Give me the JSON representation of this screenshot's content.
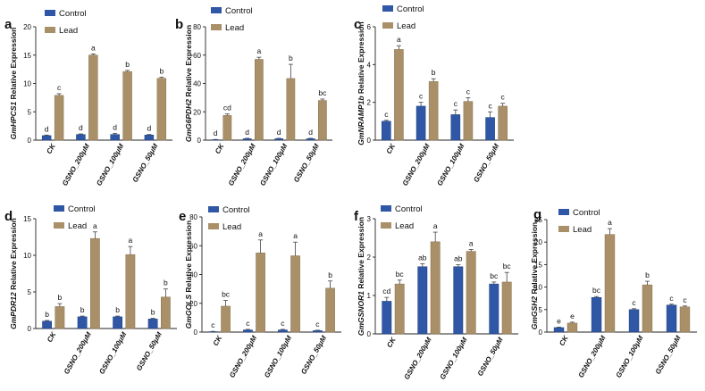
{
  "chart_data": [
    {
      "type": "bar",
      "panel": "a",
      "ylabel_prefix": "Gm",
      "ylabel_gene": "HPCS1",
      "ylabel_suffix": " Relative Expression",
      "categories": [
        "CK",
        "GSNO_200μM",
        "GSNO_100μM",
        "GSNO_50μM"
      ],
      "ylim": [
        0,
        20
      ],
      "yticks": [
        "0",
        "5",
        "10",
        "15",
        "20"
      ],
      "legend": [
        "Control",
        "Lead"
      ],
      "series": [
        {
          "name": "Control",
          "values": [
            0.8,
            1.0,
            1.0,
            0.9
          ],
          "errors": [
            0.1,
            0.1,
            0.2,
            0.1
          ],
          "letters": [
            "d",
            "d",
            "d",
            "d"
          ]
        },
        {
          "name": "Lead",
          "values": [
            7.9,
            15.0,
            12.1,
            10.9
          ],
          "errors": [
            0.3,
            0.2,
            0.2,
            0.2
          ],
          "letters": [
            "c",
            "a",
            "b",
            "b"
          ]
        }
      ]
    },
    {
      "type": "bar",
      "panel": "b",
      "ylabel_prefix": "Gm",
      "ylabel_gene": "G6PDH2",
      "ylabel_suffix": " Relative Expression",
      "categories": [
        "CK",
        "GSNO_200μM",
        "GSNO_100μM",
        "GSNO_50μM"
      ],
      "ylim": [
        0,
        80
      ],
      "yticks": [
        "0",
        "20",
        "40",
        "60",
        "80"
      ],
      "legend": [
        "Control",
        "Lead"
      ],
      "series": [
        {
          "name": "Control",
          "values": [
            0.3,
            1.0,
            1.0,
            1.0
          ],
          "errors": [
            0.2,
            0.3,
            0.3,
            0.3
          ],
          "letters": [
            "d",
            "d",
            "d",
            "d"
          ]
        },
        {
          "name": "Lead",
          "values": [
            17.5,
            57.0,
            43.5,
            28.0
          ],
          "errors": [
            1.0,
            1.5,
            10.0,
            1.0
          ],
          "letters": [
            "cd",
            "a",
            "b",
            "bc"
          ]
        }
      ]
    },
    {
      "type": "bar",
      "panel": "c",
      "ylabel_prefix": "Gm",
      "ylabel_gene": "NRAMP1b",
      "ylabel_suffix": " Relative Expression",
      "categories": [
        "CK",
        "GSNO_200μM",
        "GSNO_100μM",
        "GSNO_50μM"
      ],
      "ylim": [
        0,
        6
      ],
      "yticks": [
        "0",
        "2",
        "4",
        "6"
      ],
      "legend": [
        "Control",
        "Lead"
      ],
      "series": [
        {
          "name": "Control",
          "values": [
            1.0,
            1.8,
            1.35,
            1.2
          ],
          "errors": [
            0.05,
            0.2,
            0.25,
            0.3
          ],
          "letters": [
            "c",
            "c",
            "c",
            "c"
          ]
        },
        {
          "name": "Lead",
          "values": [
            4.8,
            3.1,
            2.05,
            1.8
          ],
          "errors": [
            0.2,
            0.15,
            0.2,
            0.15
          ],
          "letters": [
            "a",
            "b",
            "c",
            "c"
          ]
        }
      ]
    },
    {
      "type": "bar",
      "panel": "d",
      "ylabel_prefix": "Gm",
      "ylabel_gene": "PDR12",
      "ylabel_suffix": " Relative Expression",
      "categories": [
        "CK",
        "GSNO_200μM",
        "GSNO_100μM",
        "GSNO_50μM"
      ],
      "ylim": [
        0,
        15
      ],
      "yticks": [
        "0",
        "5",
        "10",
        "15"
      ],
      "legend": [
        "Control",
        "Lead"
      ],
      "series": [
        {
          "name": "Control",
          "values": [
            1.0,
            1.6,
            1.6,
            1.3
          ],
          "errors": [
            0.1,
            0.1,
            0.1,
            0.1
          ],
          "letters": [
            "b",
            "b",
            "b",
            "b"
          ]
        },
        {
          "name": "Lead",
          "values": [
            3.0,
            12.3,
            10.1,
            4.3
          ],
          "errors": [
            0.4,
            0.9,
            1.1,
            1.1
          ],
          "letters": [
            "b",
            "a",
            "a",
            "b"
          ]
        }
      ]
    },
    {
      "type": "bar",
      "panel": "e",
      "ylabel_prefix": "Gm",
      "ylabel_gene": "GOLS",
      "ylabel_suffix": " Relative Expression",
      "categories": [
        "CK",
        "GSNO_200μM",
        "GSNO_100μM",
        "GSNO_50μM"
      ],
      "ylim": [
        0,
        80
      ],
      "yticks": [
        "0",
        "20",
        "40",
        "60",
        "80"
      ],
      "legend": [
        "Control",
        "Lead"
      ],
      "series": [
        {
          "name": "Control",
          "values": [
            0.3,
            1.5,
            1.5,
            1.0
          ],
          "errors": [
            0.2,
            0.4,
            0.4,
            0.3
          ],
          "letters": [
            "c",
            "c",
            "c",
            "c"
          ]
        },
        {
          "name": "Lead",
          "values": [
            18.0,
            55.0,
            53.0,
            30.5
          ],
          "errors": [
            4.0,
            9.0,
            9.5,
            5.0
          ],
          "letters": [
            "bc",
            "a",
            "a",
            "b"
          ]
        }
      ]
    },
    {
      "type": "bar",
      "panel": "f",
      "ylabel_prefix": "Gm",
      "ylabel_gene": "GSNOR1",
      "ylabel_suffix": " Relative Expression",
      "categories": [
        "CK",
        "GSNO_200μM",
        "GSNO_100μM",
        "GSNO_50μM"
      ],
      "ylim": [
        0,
        3
      ],
      "yticks": [
        "0",
        "1",
        "2",
        "3"
      ],
      "legend": [
        "Control",
        "Lead"
      ],
      "series": [
        {
          "name": "Control",
          "values": [
            0.85,
            1.75,
            1.75,
            1.3
          ],
          "errors": [
            0.1,
            0.08,
            0.05,
            0.05
          ],
          "letters": [
            "cd",
            "ab",
            "ab",
            "bc"
          ]
        },
        {
          "name": "Lead",
          "values": [
            1.3,
            2.4,
            2.15,
            1.35
          ],
          "errors": [
            0.1,
            0.25,
            0.05,
            0.25
          ],
          "letters": [
            "bc",
            "a",
            "a",
            "bc"
          ]
        }
      ]
    },
    {
      "type": "bar",
      "panel": "g",
      "ylabel_prefix": "Gm",
      "ylabel_gene": "GSH2",
      "ylabel_suffix": " Relative Expression",
      "categories": [
        "CK",
        "GSNO_200μM",
        "GSNO_100μM",
        "GSNO_50μM"
      ],
      "ylim": [
        0,
        25
      ],
      "yticks": [
        "0",
        "5",
        "10",
        "15",
        "20",
        "25"
      ],
      "legend": [
        "Control",
        "Lead"
      ],
      "series": [
        {
          "name": "Control",
          "values": [
            1.0,
            7.7,
            5.0,
            6.0
          ],
          "errors": [
            0.1,
            0.2,
            0.2,
            0.2
          ],
          "letters": [
            "e",
            "bc",
            "c",
            "c"
          ]
        },
        {
          "name": "Lead",
          "values": [
            2.0,
            21.7,
            10.5,
            5.6
          ],
          "errors": [
            0.2,
            1.3,
            0.8,
            0.2
          ],
          "letters": [
            "e",
            "a",
            "b",
            "c"
          ]
        }
      ]
    }
  ],
  "colors": {
    "control": "#2f57a6",
    "lead": "#a99068"
  }
}
